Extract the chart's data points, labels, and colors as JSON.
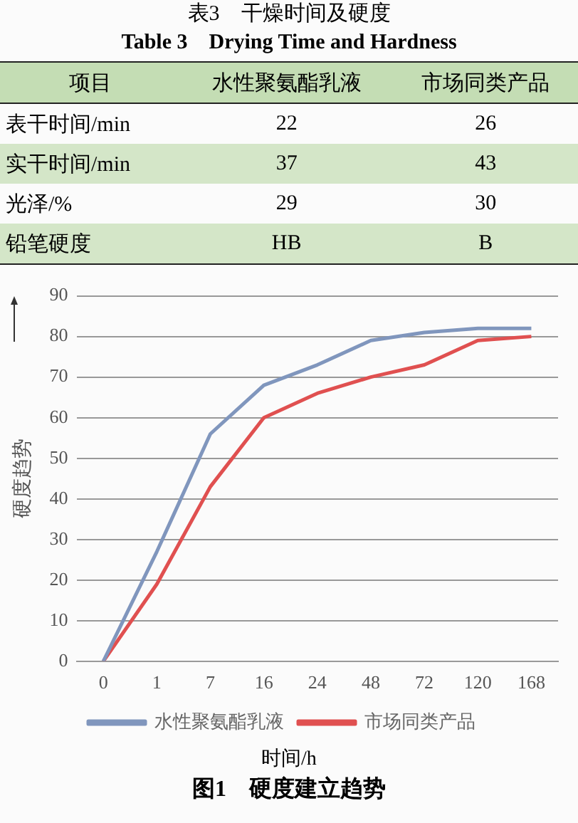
{
  "chart_data": [
    {
      "type": "other",
      "title": "表3　干燥时间及硬度",
      "subtitle": "Table 3　Drying Time and Hardness",
      "xlabel": "项目",
      "categories": [
        "表干时间/min",
        "实干时间/min",
        "光泽/%",
        "铅笔硬度"
      ],
      "series": [
        {
          "name": "水性聚氨酯乳液",
          "values": [
            null,
            null,
            null,
            null
          ],
          "value_labels": [
            "22",
            "37",
            "29",
            "HB"
          ]
        },
        {
          "name": "市场同类产品",
          "values": [
            null,
            null,
            null,
            null
          ],
          "value_labels": [
            "26",
            "43",
            "30",
            "B"
          ]
        }
      ]
    },
    {
      "type": "line",
      "title": "图1　硬度建立趋势",
      "xlabel": "时间/h",
      "ylabel": "硬度趋势",
      "categories": [
        "0",
        "1",
        "7",
        "16",
        "24",
        "48",
        "72",
        "120",
        "168"
      ],
      "series": [
        {
          "name": "水性聚氨酯乳液",
          "color": "#8096bd",
          "values": [
            0,
            27,
            56,
            68,
            73,
            79,
            81,
            82,
            82
          ]
        },
        {
          "name": "市场同类产品",
          "color": "#e05050",
          "values": [
            0,
            19,
            43,
            60,
            66,
            70,
            73,
            79,
            80
          ]
        }
      ],
      "ylim": [
        0,
        90
      ],
      "yticks": [
        0,
        10,
        20,
        30,
        40,
        50,
        60,
        70,
        80,
        90
      ],
      "grid": "y",
      "legend": "bottom",
      "marker": "none",
      "line_style": "solid"
    }
  ]
}
